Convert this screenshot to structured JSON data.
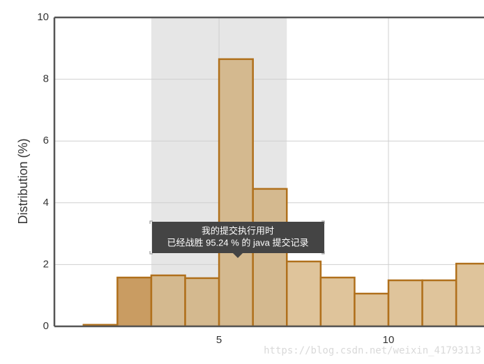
{
  "chart_data": {
    "type": "histogram",
    "y_label": "Distribution (%)",
    "bins": [
      1,
      2,
      3,
      4,
      5,
      6,
      7,
      8,
      9,
      10,
      11,
      12,
      13
    ],
    "counts": [
      0.05,
      1.58,
      1.65,
      1.56,
      8.65,
      4.45,
      2.1,
      1.58,
      1.06,
      1.49,
      1.49,
      2.03
    ],
    "colors": [
      "#dfc49b",
      "#c99c62",
      "#d4b98f",
      "#d4b98f",
      "#d4b98f",
      "#d4b98f",
      "#dfc49b",
      "#dfc49b",
      "#dfc49b",
      "#dfc49b",
      "#dfc49b",
      "#dfc49b"
    ],
    "edge_color": "#b0701c",
    "band": [
      3,
      7
    ],
    "band_color": "#e6e6e6",
    "xlim": [
      0.14,
      12.82
    ],
    "xticks": [
      5,
      10
    ],
    "ylim": [
      0,
      10
    ],
    "yticks": [
      0,
      2,
      4,
      6,
      8,
      10
    ],
    "grid": true,
    "tooltip": [
      "我的提交执行用时",
      "已经战胜 95.24 % 的 java 提交记录"
    ],
    "watermark": "https://blog.csdn.net/weixin_41793113"
  }
}
